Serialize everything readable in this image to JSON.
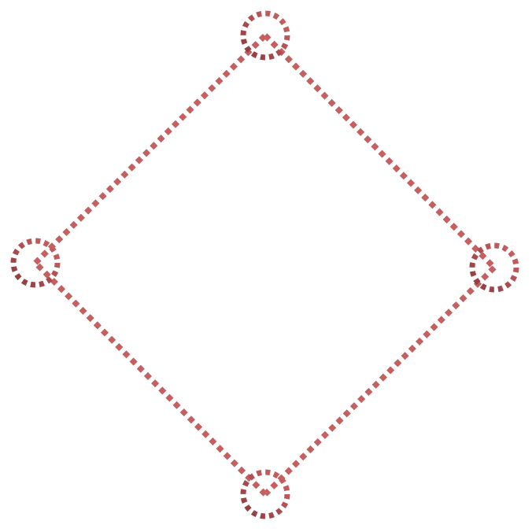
{
  "diagram": {
    "shape": "dotted diamond outline with dotted circle at each vertex",
    "colors": {
      "stroke_dark": "#8e3a3f",
      "stroke_light": "#cc6464",
      "background": "#ffffff"
    },
    "nodes": [
      "top",
      "right",
      "bottom",
      "left"
    ],
    "edges": [
      [
        "top",
        "right"
      ],
      [
        "right",
        "bottom"
      ],
      [
        "bottom",
        "left"
      ],
      [
        "left",
        "top"
      ]
    ]
  }
}
